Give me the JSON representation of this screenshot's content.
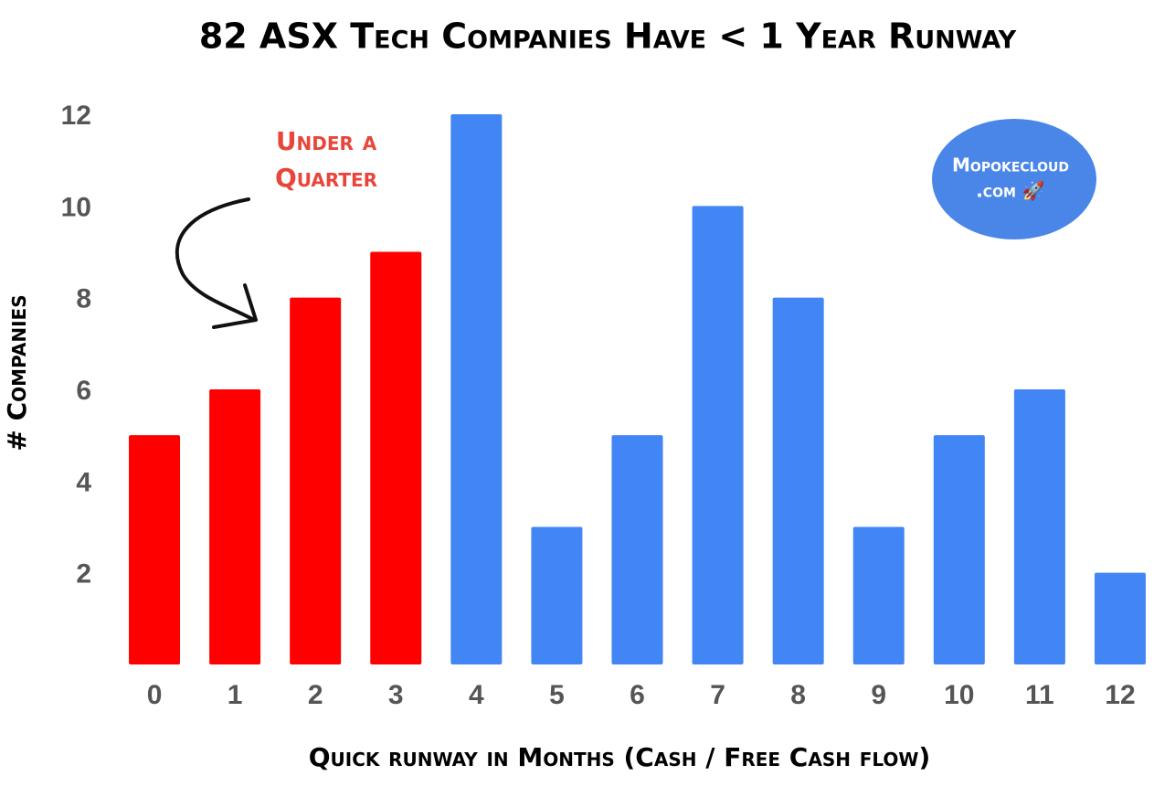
{
  "chart_data": {
    "type": "bar",
    "title": "82 ASX Tech Companies Have < 1 Year Runway",
    "x_label": "Quick runway in Months (Cash / Free Cash flow)",
    "y_label": "# Companies",
    "categories": [
      "0",
      "1",
      "2",
      "3",
      "4",
      "5",
      "6",
      "7",
      "8",
      "9",
      "10",
      "11",
      "12"
    ],
    "values": [
      5,
      6,
      8,
      9,
      12,
      3,
      5,
      10,
      8,
      3,
      5,
      6,
      2
    ],
    "colors": [
      "#ff0000",
      "#ff0000",
      "#ff0000",
      "#ff0000",
      "#4285f4",
      "#4285f4",
      "#4285f4",
      "#4285f4",
      "#4285f4",
      "#4285f4",
      "#4285f4",
      "#4285f4",
      "#4285f4"
    ],
    "ylim": [
      0,
      12
    ],
    "yticks": [
      2,
      4,
      6,
      8,
      10,
      12
    ],
    "grid": false,
    "annotation": [
      "Under a",
      "Quarter"
    ],
    "watermark": [
      "Mopokecloud",
      ".com 🚀"
    ]
  }
}
